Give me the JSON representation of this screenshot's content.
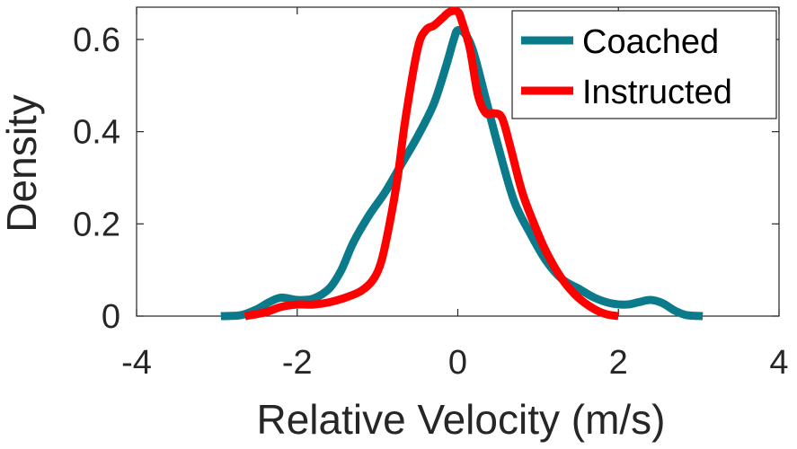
{
  "chart_data": {
    "type": "line",
    "title": "",
    "xlabel": "Relative Velocity (m/s)",
    "ylabel": "Density",
    "xlim": [
      -4,
      4
    ],
    "ylim": [
      0,
      0.67
    ],
    "xticks": [
      -4,
      -2,
      0,
      2,
      4
    ],
    "xtick_labels": [
      "-4",
      "-2",
      "0",
      "2",
      "4"
    ],
    "yticks": [
      0,
      0.2,
      0.4,
      0.6
    ],
    "ytick_labels": [
      "0",
      "0.2",
      "0.4",
      "0.6"
    ],
    "grid": false,
    "legend_position": "top-right",
    "series": [
      {
        "name": "Coached",
        "color": "#0B7A8A",
        "x": [
          -2.95,
          -2.7,
          -2.5,
          -2.35,
          -2.2,
          -2.0,
          -1.8,
          -1.6,
          -1.45,
          -1.3,
          -1.1,
          -0.9,
          -0.7,
          -0.5,
          -0.3,
          -0.15,
          -0.05,
          0.0,
          0.1,
          0.2,
          0.35,
          0.5,
          0.7,
          0.9,
          1.1,
          1.3,
          1.5,
          1.7,
          1.9,
          2.1,
          2.25,
          2.4,
          2.55,
          2.7,
          2.85,
          3.05
        ],
        "y": [
          0.0,
          0.002,
          0.015,
          0.03,
          0.04,
          0.035,
          0.038,
          0.06,
          0.1,
          0.16,
          0.22,
          0.27,
          0.33,
          0.39,
          0.46,
          0.54,
          0.6,
          0.62,
          0.61,
          0.57,
          0.47,
          0.37,
          0.25,
          0.18,
          0.12,
          0.08,
          0.06,
          0.04,
          0.028,
          0.025,
          0.03,
          0.035,
          0.028,
          0.012,
          0.002,
          0.0
        ]
      },
      {
        "name": "Instructed",
        "color": "#FF0000",
        "x": [
          -2.65,
          -2.4,
          -2.2,
          -2.0,
          -1.8,
          -1.6,
          -1.4,
          -1.2,
          -1.05,
          -0.95,
          -0.85,
          -0.75,
          -0.65,
          -0.5,
          -0.4,
          -0.3,
          -0.2,
          -0.1,
          0.0,
          0.05,
          0.15,
          0.25,
          0.35,
          0.45,
          0.55,
          0.65,
          0.8,
          0.95,
          1.1,
          1.3,
          1.5,
          1.7,
          1.85,
          2.0
        ],
        "y": [
          0.0,
          0.008,
          0.02,
          0.025,
          0.025,
          0.03,
          0.04,
          0.055,
          0.08,
          0.12,
          0.2,
          0.3,
          0.43,
          0.58,
          0.62,
          0.63,
          0.645,
          0.66,
          0.66,
          0.64,
          0.58,
          0.48,
          0.44,
          0.44,
          0.43,
          0.37,
          0.27,
          0.2,
          0.14,
          0.08,
          0.04,
          0.015,
          0.004,
          0.0
        ]
      }
    ]
  }
}
